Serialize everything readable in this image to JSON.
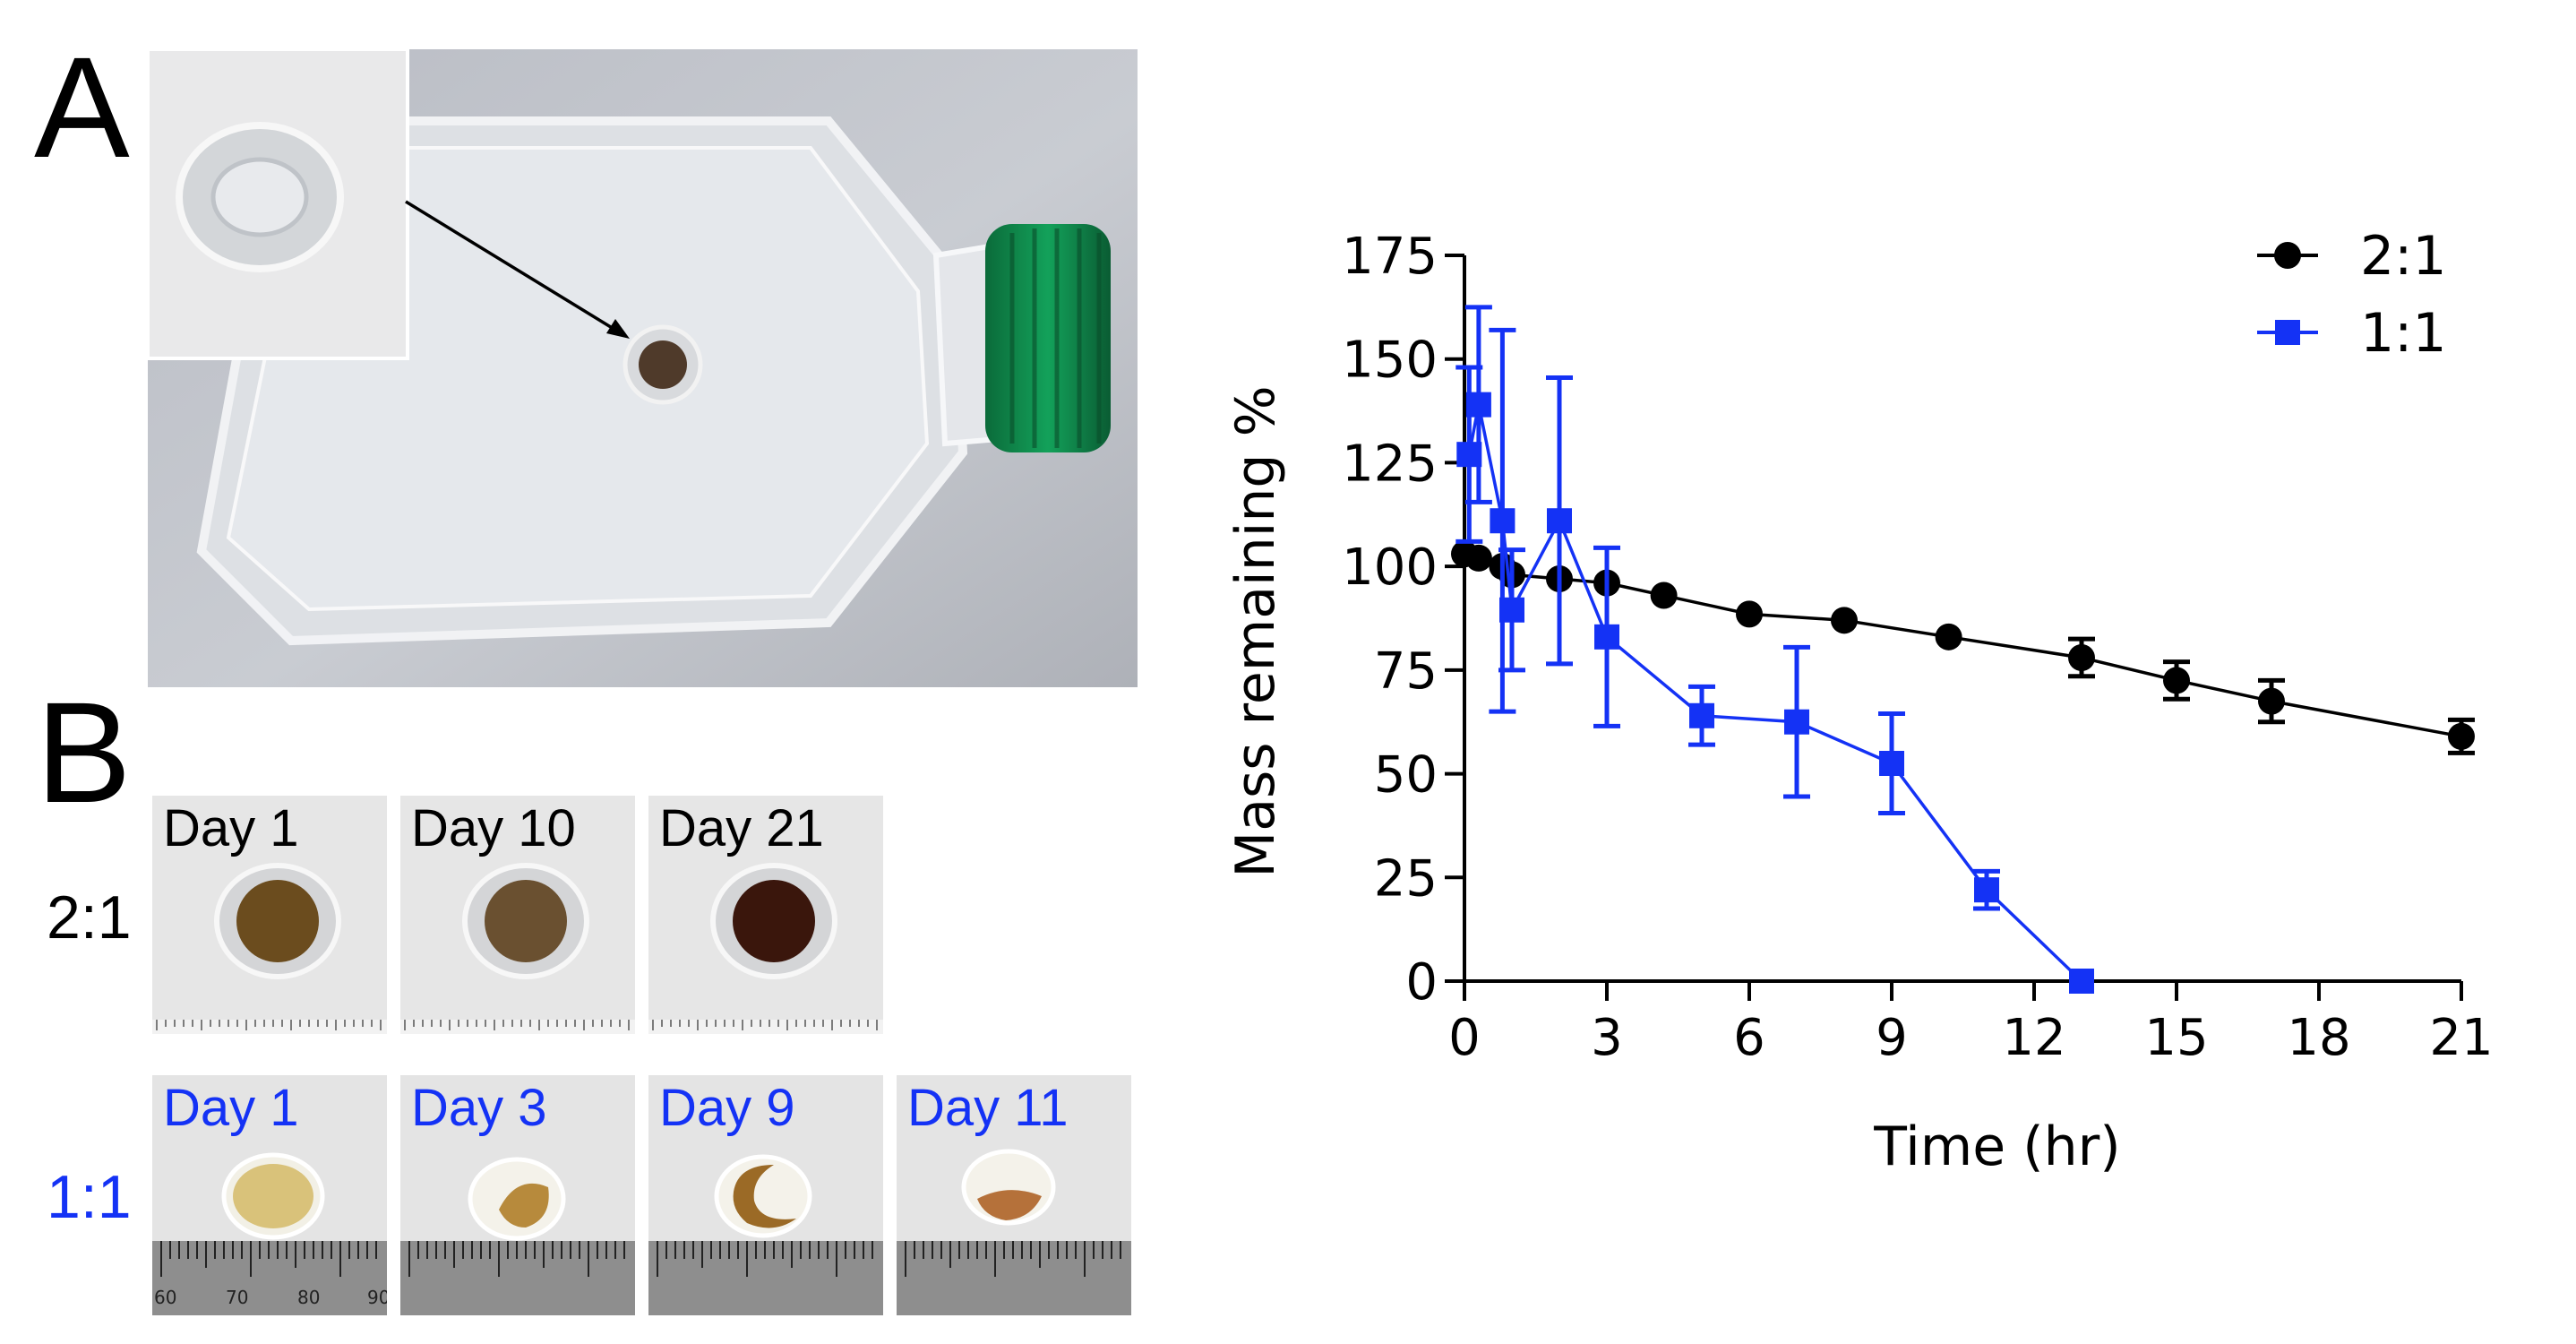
{
  "panels": {
    "a": {
      "label": "A"
    },
    "b": {
      "label": "B"
    }
  },
  "row_2_1": {
    "label": "2:1",
    "tiles": [
      {
        "label": "Day 1",
        "gel_color": "#6b4c1e"
      },
      {
        "label": "Day 10",
        "gel_color": "#6a5030"
      },
      {
        "label": "Day 21",
        "gel_color": "#3a160c"
      }
    ]
  },
  "row_1_1": {
    "label": "1:1",
    "tiles": [
      {
        "label": "Day 1",
        "gel_color": "#d9c27a"
      },
      {
        "label": "Day 3",
        "gel_color": "#b78a3c"
      },
      {
        "label": "Day 9",
        "gel_color": "#9b6a26"
      },
      {
        "label": "Day 11",
        "gel_color": "#b5713a"
      }
    ],
    "ruler_numbers": [
      "60",
      "70",
      "80",
      "90"
    ]
  },
  "colors": {
    "series_2_1": "#000000",
    "series_1_1": "#1432f5",
    "cap": "#0e8a4a",
    "label_blue": "#1432f5"
  },
  "chart_data": {
    "type": "line",
    "title": "",
    "xlabel": "Time (hr)",
    "ylabel": "Mass remaining %",
    "xlim": [
      0,
      21
    ],
    "ylim": [
      0,
      175
    ],
    "xticks": [
      0,
      3,
      6,
      9,
      12,
      15,
      18,
      21
    ],
    "yticks": [
      0,
      25,
      50,
      75,
      100,
      125,
      150,
      175
    ],
    "legend_position": "top-right",
    "series": [
      {
        "name": "2:1",
        "marker": "circle",
        "color": "#000000",
        "x": [
          0,
          0.3,
          0.8,
          1,
          2,
          3,
          4.2,
          6,
          8,
          10.2,
          13,
          15,
          17,
          21
        ],
        "y": [
          103,
          102,
          100,
          98,
          97,
          96,
          93,
          88.5,
          87,
          83,
          78,
          72.5,
          67.5,
          59
        ],
        "err": [
          0,
          0,
          0,
          0,
          0,
          0,
          0,
          0,
          0,
          0,
          4.5,
          4.5,
          5,
          4
        ]
      },
      {
        "name": "1:1",
        "marker": "square",
        "color": "#1432f5",
        "x": [
          0.1,
          0.3,
          0.8,
          1,
          2,
          3,
          5,
          7,
          9,
          11,
          13
        ],
        "y": [
          127,
          139,
          111,
          89.5,
          111,
          83,
          64,
          62.5,
          52.5,
          22,
          0
        ],
        "err": [
          21,
          23.5,
          46,
          14.5,
          34.5,
          21.5,
          7,
          18,
          12,
          4.5,
          0
        ]
      }
    ]
  }
}
